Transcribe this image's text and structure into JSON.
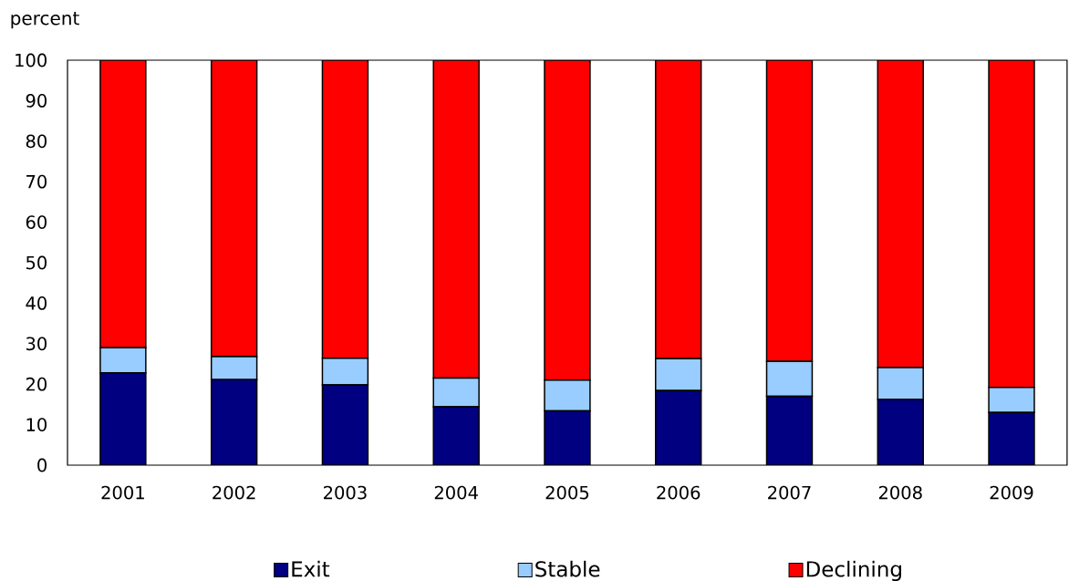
{
  "chart_data": {
    "type": "bar",
    "stacked": true,
    "ylabel": "percent",
    "categories": [
      "2001",
      "2002",
      "2003",
      "2004",
      "2005",
      "2006",
      "2007",
      "2008",
      "2009"
    ],
    "series": [
      {
        "name": "Exit",
        "color": "#000080",
        "values": [
          22.8,
          21.1,
          19.8,
          14.4,
          13.4,
          18.4,
          17.0,
          16.2,
          13.0
        ]
      },
      {
        "name": "Stable",
        "color": "#99ccff",
        "values": [
          6.2,
          5.7,
          6.6,
          7.1,
          7.6,
          7.9,
          8.6,
          7.9,
          6.2
        ]
      },
      {
        "name": "Declining",
        "color": "#ff0000",
        "values": [
          71.0,
          73.2,
          73.6,
          78.5,
          79.0,
          73.7,
          74.4,
          75.9,
          80.8
        ]
      }
    ],
    "ylim": [
      0,
      100
    ],
    "yticks": [
      0,
      10,
      20,
      30,
      40,
      50,
      60,
      70,
      80,
      90,
      100
    ],
    "legend": "bottom"
  }
}
